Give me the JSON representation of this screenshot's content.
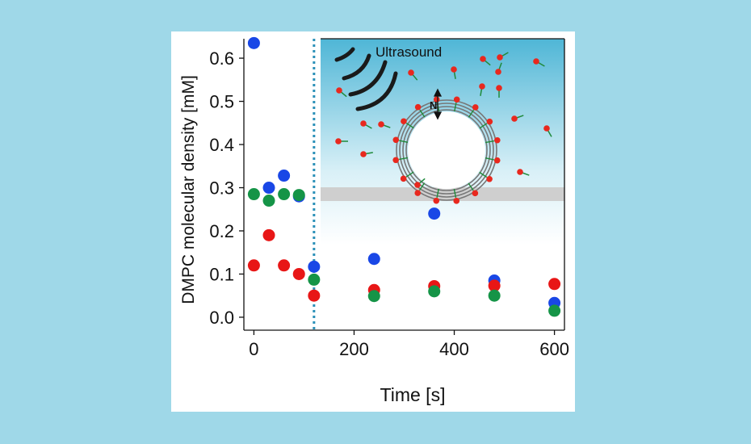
{
  "chart_data": {
    "type": "scatter",
    "xlabel": "Time [s]",
    "ylabel": "DMPC molecular density [mM]",
    "xlim": [
      -20,
      620
    ],
    "ylim": [
      -0.03,
      0.645
    ],
    "xticks": [
      0,
      200,
      400,
      600
    ],
    "yticks": [
      0.0,
      0.1,
      0.2,
      0.3,
      0.4,
      0.5,
      0.6
    ],
    "grid": false,
    "vertical_line": {
      "x": 120,
      "style": "dotted",
      "color": "#2a90b8"
    },
    "series": [
      {
        "color": "#1947e6",
        "x": [
          0,
          30,
          60,
          90,
          120,
          240,
          360,
          480,
          600
        ],
        "y": [
          0.635,
          0.3,
          0.328,
          0.28,
          0.117,
          0.135,
          0.24,
          0.085,
          0.033
        ]
      },
      {
        "color": "#e81616",
        "x": [
          0,
          30,
          60,
          90,
          120,
          240,
          360,
          480,
          600
        ],
        "y": [
          0.12,
          0.19,
          0.12,
          0.1,
          0.05,
          0.063,
          0.072,
          0.073,
          0.077
        ]
      },
      {
        "color": "#159447",
        "x": [
          0,
          30,
          60,
          90,
          120,
          240,
          360,
          480,
          600
        ],
        "y": [
          0.285,
          0.27,
          0.285,
          0.283,
          0.087,
          0.049,
          0.06,
          0.05,
          0.015
        ]
      }
    ],
    "inset": {
      "label": "Ultrasound",
      "direction_label": "N",
      "gradient_top": "#4fb6d6",
      "gradient_bottom": "#ffffff",
      "substrate_color": "#cfcfcf",
      "lipid_head_color": "#e8281e",
      "lipid_tail_color": "#1f8a3a"
    }
  }
}
